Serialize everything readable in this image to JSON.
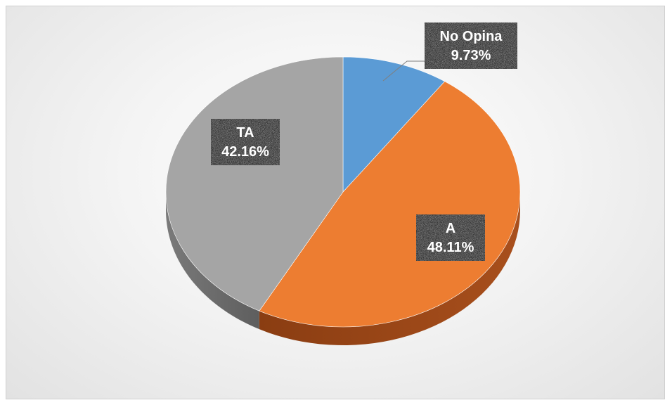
{
  "chart_data": {
    "type": "pie",
    "title": "",
    "categories": [
      "No Opina",
      "A",
      "TA"
    ],
    "values": [
      9.73,
      48.11,
      42.16
    ],
    "value_labels": [
      "9.73%",
      "48.11%",
      "42.16%"
    ],
    "colors": [
      "#5B9BD5",
      "#ED7D31",
      "#A5A5A5"
    ],
    "style": "3d-tilted",
    "data_labels": "category-and-percent"
  }
}
